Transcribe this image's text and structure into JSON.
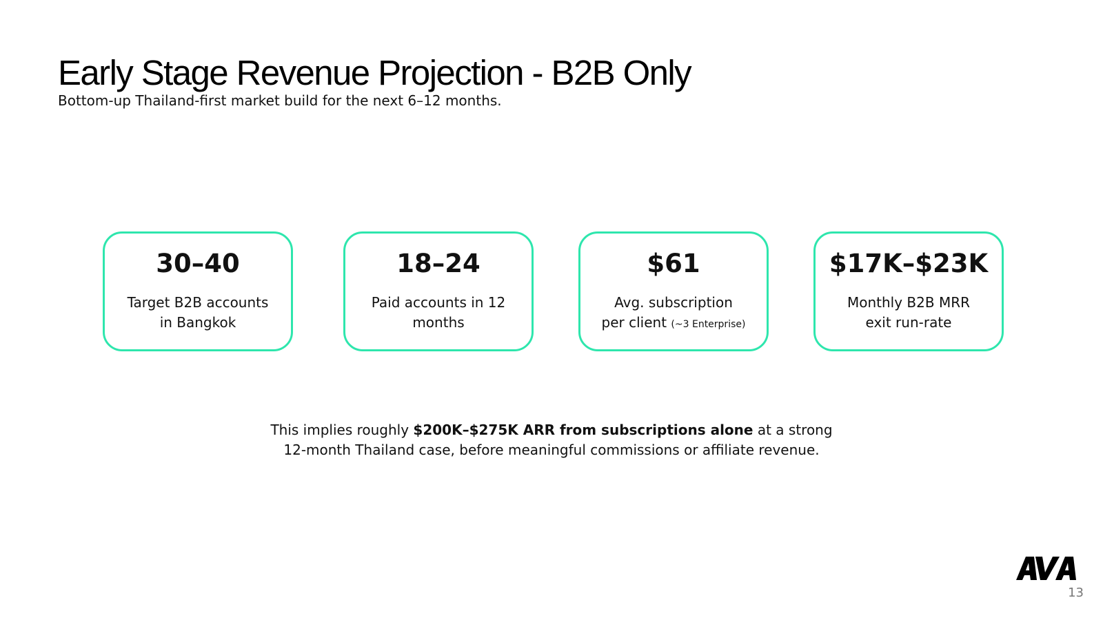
{
  "slide": {
    "title": "Early Stage Revenue Projection - B2B Only",
    "subtitle": "Bottom-up Thailand-first market build for the next 6–12 months.",
    "accent_color": "#2ee6ad",
    "page_number": "13",
    "logo_text": "AVA"
  },
  "cards": [
    {
      "value": "30–40",
      "label_line1": "Target B2B accounts",
      "label_line2": "in Bangkok",
      "label_note": ""
    },
    {
      "value": "18–24",
      "label_line1": "Paid accounts in 12",
      "label_line2": "months",
      "label_note": ""
    },
    {
      "value": "$61",
      "label_line1": "Avg. subscription",
      "label_line2": "per client",
      "label_note": "(~3 Enterprise)"
    },
    {
      "value": "$17K–$23K",
      "label_line1": "Monthly B2B MRR",
      "label_line2": "exit run-rate",
      "label_note": ""
    }
  ],
  "summary": {
    "prefix": "This implies roughly ",
    "bold": "$200K–$275K ARR from subscriptions alone",
    "suffix_line1": " at a strong",
    "line2": "12-month Thailand case, before meaningful commissions or affiliate revenue."
  }
}
